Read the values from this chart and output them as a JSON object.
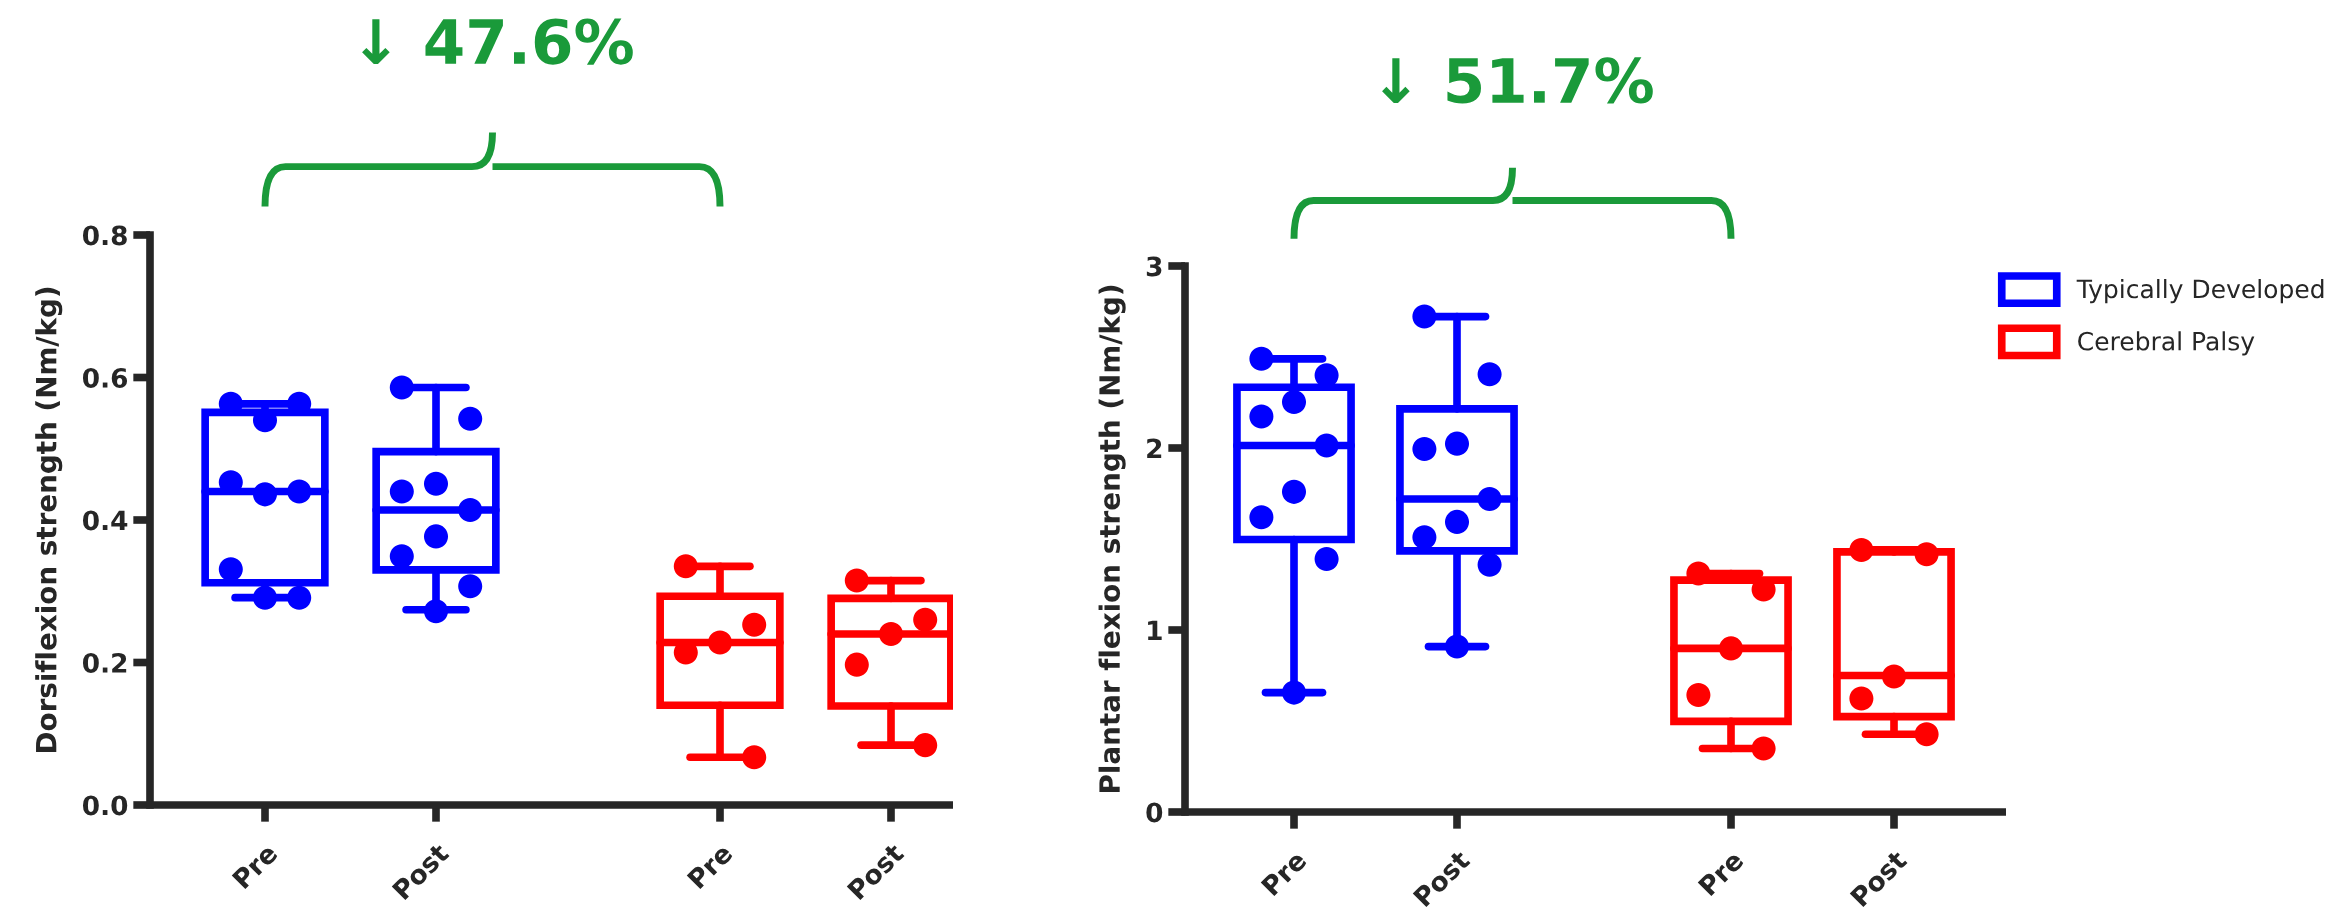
{
  "chart_data": [
    {
      "type": "box",
      "title": "↓ 47.6%",
      "ylabel": "Dorsiflexion strength (Nm/kg)",
      "categories": [
        "Pre",
        "Post"
      ],
      "ylim": [
        0,
        0.8
      ],
      "yticks": [
        {
          "value": 0,
          "label": "0.0"
        },
        0.2,
        0.4,
        0.6,
        0.8
      ],
      "marker": "circle",
      "series": [
        {
          "color": "#0000ff",
          "boxes": [
            {
              "low": 0.291,
              "q1": 0.312,
              "median": 0.44,
              "q3": 0.551,
              "high": 0.563
            },
            {
              "low": 0.274,
              "q1": 0.33,
              "median": 0.414,
              "q3": 0.496,
              "high": 0.586
            }
          ]
        },
        {
          "type": "scatter",
          "color": "#0000ff",
          "x": [
            "Pre",
            "Pre",
            "Pre",
            "Pre",
            "Pre",
            "Pre",
            "Pre",
            "Pre",
            "Pre"
          ],
          "values": [
            0.563,
            0.563,
            0.54,
            0.453,
            0.44,
            0.436,
            0.331,
            0.291,
            0.291
          ]
        },
        {
          "type": "scatter",
          "color": "#0000ff",
          "x": [
            "Post",
            "Post",
            "Post",
            "Post",
            "Post",
            "Post",
            "Post",
            "Post",
            "Post"
          ],
          "values": [
            0.586,
            0.542,
            0.451,
            0.44,
            0.414,
            0.377,
            0.349,
            0.307,
            0.272
          ]
        }
      ]
    },
    {
      "type": "box",
      "categories": [
        "Pre",
        "Post"
      ],
      "ylim": [
        0,
        0.8
      ],
      "tick_labels": "x",
      "marker": "circle",
      "series": [
        {
          "color": "#ff0000",
          "boxes": [
            {
              "low": 0.067,
              "q1": 0.14,
              "median": 0.228,
              "q3": 0.293,
              "high": 0.335
            },
            {
              "low": 0.084,
              "q1": 0.139,
              "median": 0.24,
              "q3": 0.29,
              "high": 0.315
            }
          ]
        },
        {
          "type": "scatter",
          "color": "#ff0000",
          "x": [
            "Pre",
            "Pre",
            "Pre",
            "Pre",
            "Pre"
          ],
          "values": [
            0.335,
            0.253,
            0.228,
            0.214,
            0.067
          ]
        },
        {
          "type": "scatter",
          "color": "#ff0000",
          "x": [
            "Post",
            "Post",
            "Post",
            "Post",
            "Post"
          ],
          "values": [
            0.315,
            0.26,
            0.24,
            0.197,
            0.084
          ]
        }
      ]
    },
    {
      "type": "box",
      "title": "↓ 51.7%",
      "ylabel": "Plantar flexion strength (Nm/kg)",
      "categories": [
        "Pre",
        "Post"
      ],
      "ylim": [
        0,
        3
      ],
      "yticks": [
        0,
        1,
        2,
        3
      ],
      "marker": "circle",
      "series": [
        {
          "name": "Typically Developed",
          "color": "#0000ff",
          "boxes": [
            {
              "low": 0.656,
              "q1": 1.497,
              "median": 2.014,
              "q3": 2.334,
              "high": 2.49
            },
            {
              "low": 0.909,
              "q1": 1.435,
              "median": 1.72,
              "q3": 2.215,
              "high": 2.722
            }
          ]
        },
        {
          "type": "scatter",
          "color": "#0000ff",
          "x": [
            "Pre",
            "Pre",
            "Pre",
            "Pre",
            "Pre",
            "Pre",
            "Pre",
            "Pre",
            "Pre"
          ],
          "values": [
            2.49,
            2.4,
            2.253,
            2.173,
            2.014,
            1.759,
            1.62,
            1.39,
            0.656
          ]
        },
        {
          "type": "scatter",
          "color": "#0000ff",
          "x": [
            "Post",
            "Post",
            "Post",
            "Post",
            "Post",
            "Post",
            "Post",
            "Post",
            "Post"
          ],
          "values": [
            2.722,
            2.405,
            2.024,
            1.995,
            1.72,
            1.594,
            1.51,
            1.358,
            0.909
          ]
        }
      ]
    },
    {
      "type": "box",
      "categories": [
        "Pre",
        "Post"
      ],
      "ylim": [
        0,
        3
      ],
      "tick_labels": "x",
      "legend": "top right",
      "marker": "circle",
      "series": [
        {
          "name": "Cerebral Palsy",
          "color": "#ff0000",
          "boxes": [
            {
              "low": 0.349,
              "q1": 0.498,
              "median": 0.899,
              "q3": 1.274,
              "high": 1.31
            },
            {
              "low": 0.427,
              "q1": 0.524,
              "median": 0.75,
              "q3": 1.429,
              "high": 1.44
            }
          ]
        },
        {
          "type": "scatter",
          "color": "#ff0000",
          "x": [
            "Pre",
            "Pre",
            "Pre",
            "Pre",
            "Pre"
          ],
          "values": [
            1.31,
            1.222,
            0.899,
            0.643,
            0.349
          ]
        },
        {
          "type": "scatter",
          "color": "#ff0000",
          "x": [
            "Post",
            "Post",
            "Post",
            "Post",
            "Post"
          ],
          "values": [
            1.44,
            1.416,
            0.744,
            0.624,
            0.427
          ]
        }
      ]
    }
  ]
}
